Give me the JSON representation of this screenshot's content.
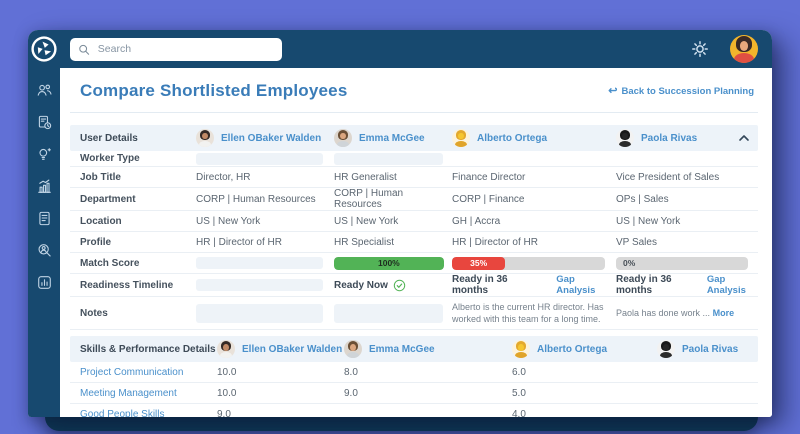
{
  "colors": {
    "backdrop": "#6170d6",
    "chrome": "#17496f",
    "title": "#3a7cb8",
    "link": "#4a90cb",
    "green": "#52b356",
    "red": "#e8463e",
    "track": "#d8d8d8",
    "sectionbg": "#edf3f9",
    "base": "#0e3a55"
  },
  "topbar": {
    "search_placeholder": "Search",
    "avatar": {
      "bg": "#f2b52c",
      "hair": "#3a2a26",
      "skin": "#e8a87c",
      "shirt": "#e04f42"
    }
  },
  "sidebar": {
    "icons": [
      "team",
      "worker-history",
      "insights",
      "growth-chart",
      "reports",
      "talent-search",
      "analytics"
    ]
  },
  "header": {
    "title": "Compare Shortlisted Employees",
    "back_arrow": "↩",
    "back_label": "Back to Succession Planning"
  },
  "users": [
    {
      "name": "Ellen OBaker Walden",
      "avatar": {
        "bg": "#e9e2da",
        "hair": "#352a25",
        "skin": "#c18a66",
        "shirt": "#f2f2f0"
      }
    },
    {
      "name": "Emma McGee",
      "avatar": {
        "bg": "#ddd6ce",
        "hair": "#6b4f35",
        "skin": "#dba67f",
        "shirt": "#cfd4d8"
      }
    },
    {
      "name": "Alberto Ortega",
      "avatar": {
        "bg": "#fdf3dc",
        "hair": "#e3a92d",
        "skin": "#f6c62f",
        "shirt": "#e0a42a"
      }
    },
    {
      "name": "Paola Rivas",
      "avatar": {
        "bg": "#f2f2f2",
        "hair": "#191919",
        "skin": "#262626",
        "shirt": "#2b2b2b"
      }
    }
  ],
  "details": {
    "section_label": "User Details",
    "worker_type": {
      "label": "Worker Type"
    },
    "job_title": {
      "label": "Job Title",
      "values": [
        "Director, HR",
        "HR Generalist",
        "Finance Director",
        "Vice President of Sales"
      ]
    },
    "department": {
      "label": "Department",
      "values": [
        "CORP | Human Resources",
        "CORP | Human Resources",
        "CORP | Finance",
        "OPs | Sales"
      ]
    },
    "location": {
      "label": "Location",
      "values": [
        "US | New York",
        "US | New York",
        "GH | Accra",
        "US | New York"
      ]
    },
    "profile": {
      "label": "Profile",
      "values": [
        "HR | Director of HR",
        "HR Specialist",
        "HR | Director of HR",
        "VP Sales"
      ]
    },
    "match_score": {
      "label": "Match Score",
      "scores": [
        {
          "pct": 100,
          "label": "100%"
        },
        {
          "pct": 35,
          "label": "35%"
        },
        {
          "pct": 0,
          "label": "0%"
        }
      ]
    },
    "readiness": {
      "label": "Readiness Timeline",
      "ready_now": "Ready Now",
      "ready_36": "Ready in 36 months",
      "gap_link": "Gap Analysis"
    },
    "notes": {
      "label": "Notes",
      "alberto": "Alberto is the current HR director. Has worked with this team for a long time.",
      "paola": "Paola has done work ...",
      "more_link": "More"
    }
  },
  "skills": {
    "section_label": "Skills & Performance Details",
    "rows": [
      {
        "label": "Project Communication",
        "values": [
          "10.0",
          "8.0",
          "6.0",
          ""
        ]
      },
      {
        "label": "Meeting Management",
        "values": [
          "10.0",
          "9.0",
          "5.0",
          ""
        ]
      },
      {
        "label": "Good People Skills",
        "values": [
          "9.0",
          "",
          "4.0",
          ""
        ]
      }
    ]
  }
}
